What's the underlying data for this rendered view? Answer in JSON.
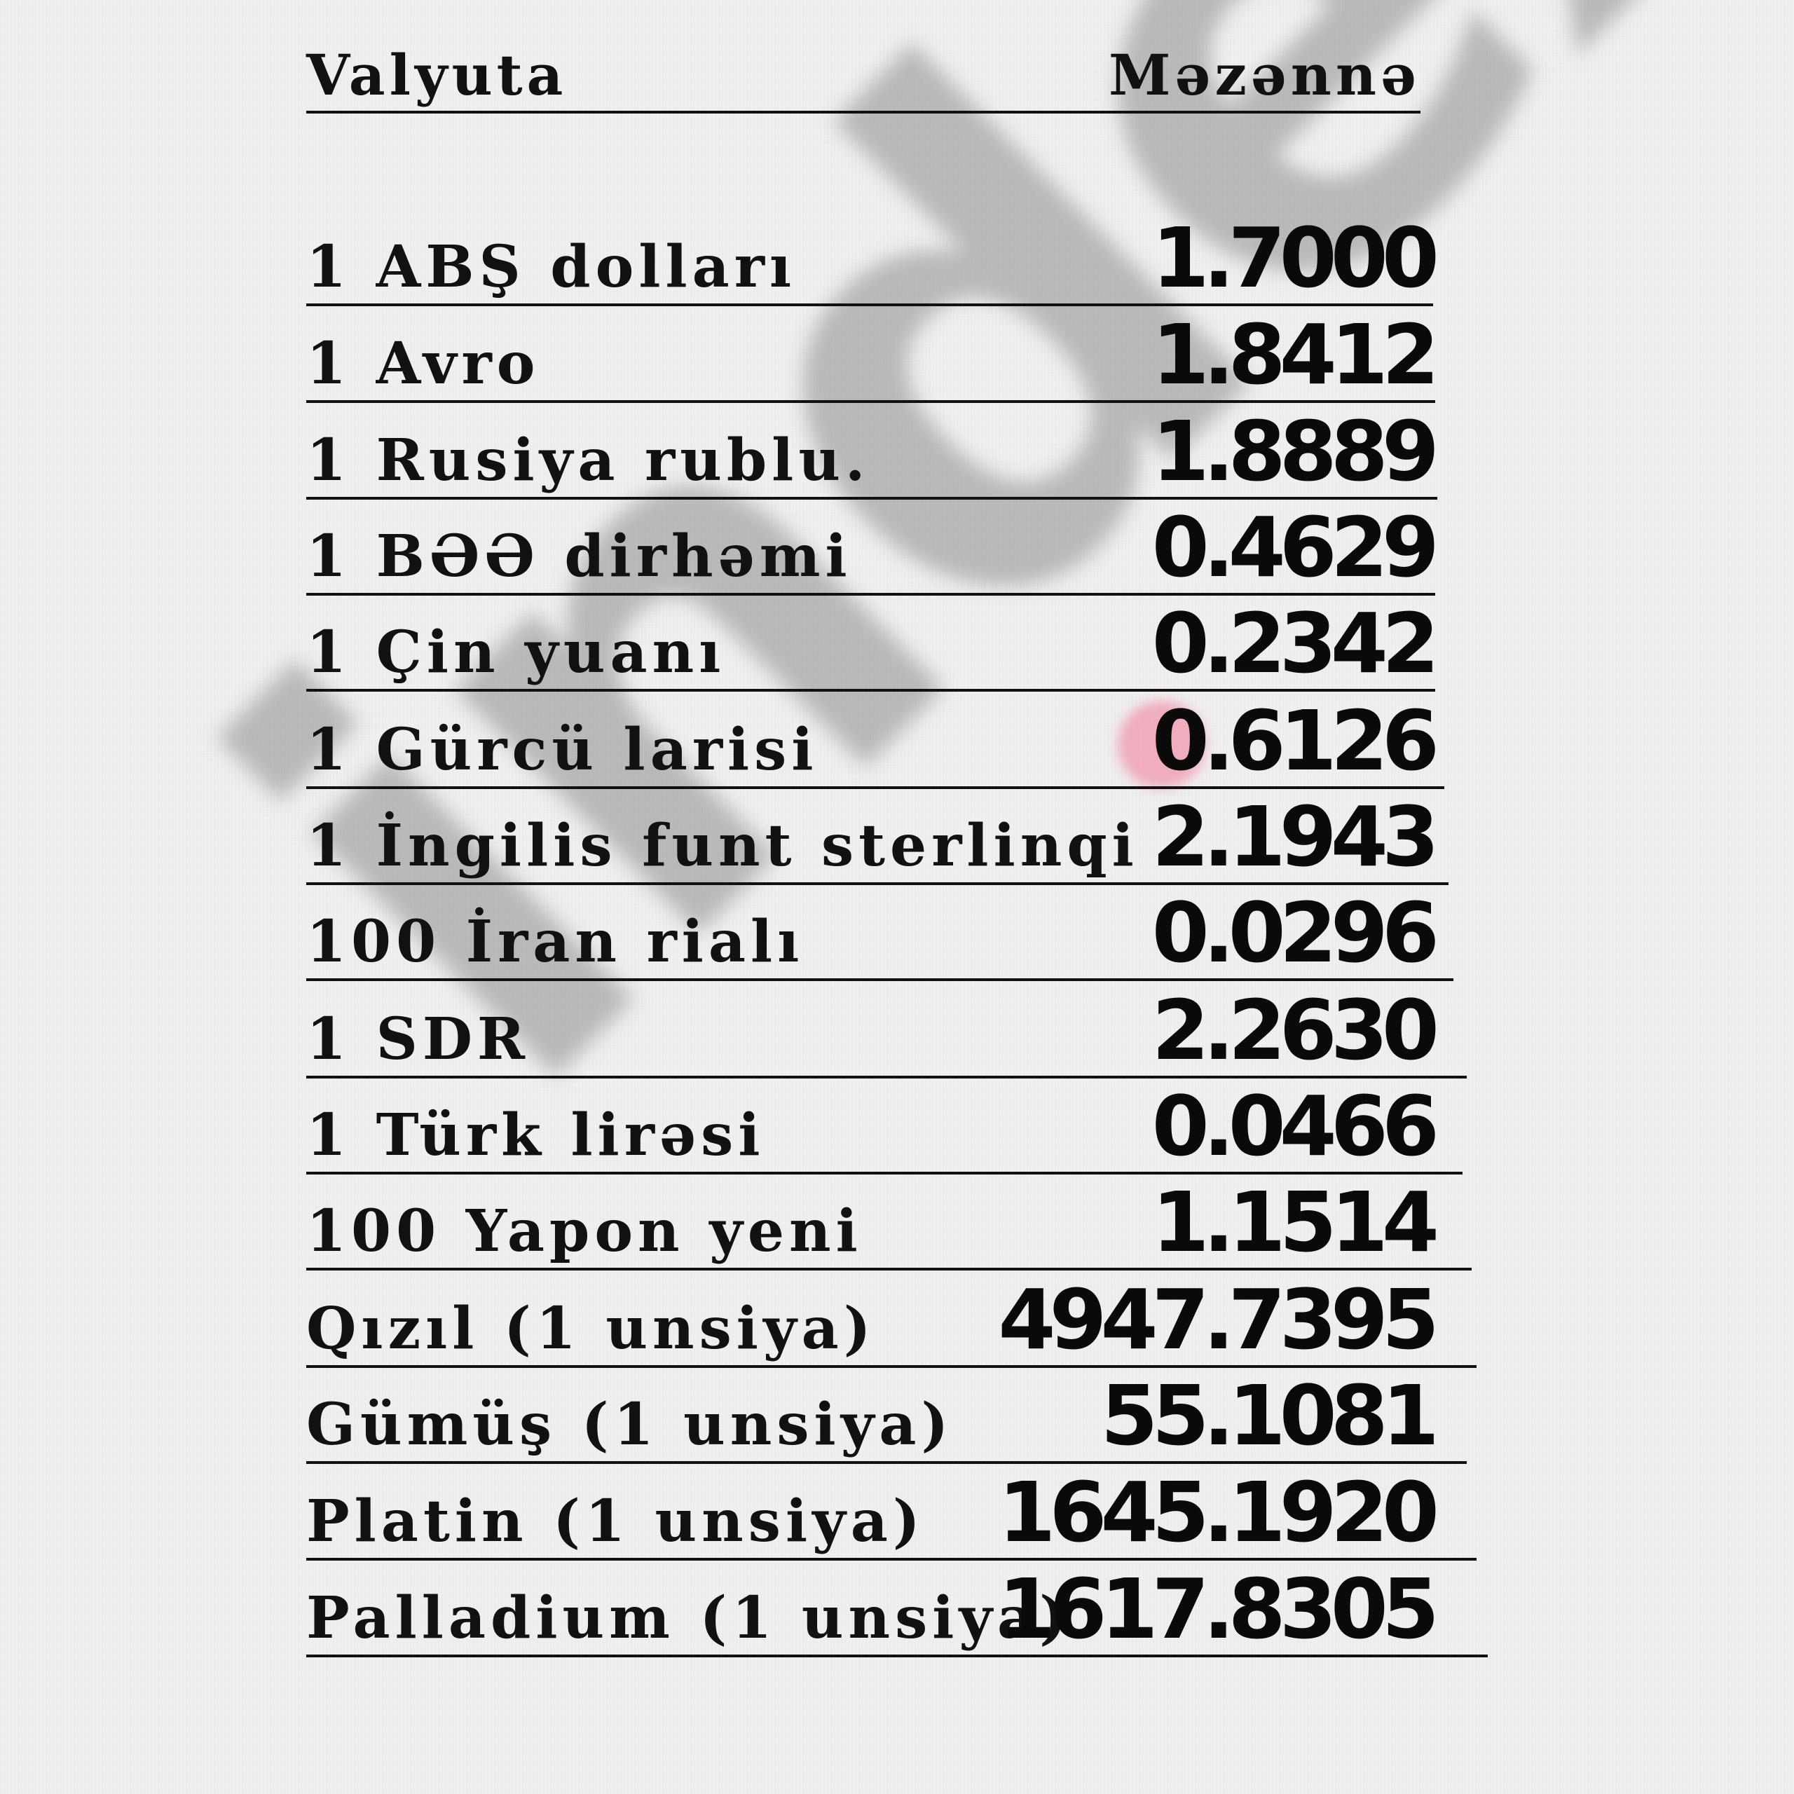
{
  "header": {
    "currency_label": "Valyuta",
    "rate_label": "Məzənnə"
  },
  "rows": [
    {
      "label": "1 ABŞ dolları",
      "value": "1.7000"
    },
    {
      "label": "1 Avro",
      "value": "1.8412"
    },
    {
      "label": "1 Rusiya rublu.",
      "value": "1.8889"
    },
    {
      "label": "1 BƏƏ dirhəmi",
      "value": "0.4629"
    },
    {
      "label": "1 Çin yuanı",
      "value": "0.2342"
    },
    {
      "label": "1 Gürcü larisi",
      "value": "0.6126"
    },
    {
      "label": "1 İngilis funt sterlinqi",
      "value": "2.1943"
    },
    {
      "label": "100 İran rialı",
      "value": "0.0296"
    },
    {
      "label": "1 SDR",
      "value": "2.2630"
    },
    {
      "label": "1 Türk lirəsi",
      "value": "0.0466"
    },
    {
      "label": "100 Yapon yeni",
      "value": "1.1514"
    },
    {
      "label": "Qızıl (1 unsiya)",
      "value": "4947.7395"
    },
    {
      "label": "Gümüş (1 unsiya)",
      "value": "55.1081"
    },
    {
      "label": "Platin (1 unsiya)",
      "value": "1645.1920"
    },
    {
      "label": "Palladium (1 unsiya)",
      "value": "1617.8305"
    }
  ],
  "watermark": {
    "text": "index.az",
    "dot_color": "#f07896"
  }
}
